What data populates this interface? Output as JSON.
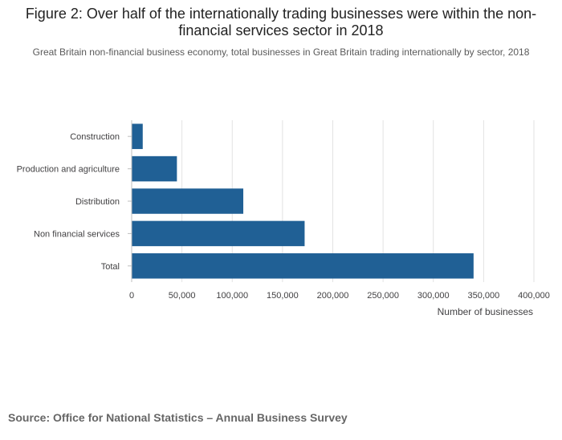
{
  "title": "Figure 2: Over half of the internationally trading businesses were within the non-financial services sector in 2018",
  "subtitle": "Great Britain non-financial business economy, total businesses in Great Britain trading internationally by sector, 2018",
  "source": "Source: Office for National Statistics – Annual Business Survey",
  "colors": {
    "bar": "#206095",
    "grid": "#e2e2e2",
    "axis": "#bfbfbf",
    "text": "#414042"
  },
  "chart_data": {
    "type": "bar",
    "orientation": "horizontal",
    "categories": [
      "Construction",
      "Production and agriculture",
      "Distribution",
      "Non financial services",
      "Total"
    ],
    "values": [
      11000,
      45000,
      111000,
      172000,
      340000
    ],
    "xlabel": "Number of businesses",
    "ylabel": "",
    "xlim": [
      0,
      400000
    ],
    "xticks": [
      0,
      50000,
      100000,
      150000,
      200000,
      250000,
      300000,
      350000,
      400000
    ],
    "xtick_labels": [
      "0",
      "50,000",
      "100,000",
      "150,000",
      "200,000",
      "250,000",
      "300,000",
      "350,000",
      "400,000"
    ],
    "grid": true,
    "legend": "none"
  }
}
